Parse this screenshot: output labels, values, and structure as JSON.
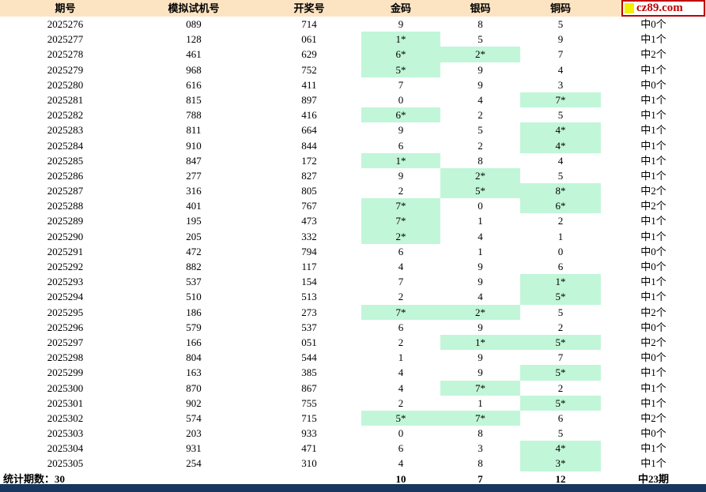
{
  "logo": {
    "text": "cz89.com"
  },
  "colors": {
    "header_bg": "#FCE4C2",
    "highlight": "#C1F6D9",
    "logo_red": "#C00000",
    "logo_yellow": "#F2F000",
    "footer": "#17375E"
  },
  "table": {
    "columns": [
      "期号",
      "模拟试机号",
      "开奖号",
      "金码",
      "银码",
      "铜码"
    ],
    "rows": [
      {
        "period": "2025276",
        "sim": "089",
        "draw": "714",
        "gold": "9",
        "silver": "8",
        "copper": "5",
        "result": "中0个"
      },
      {
        "period": "2025277",
        "sim": "128",
        "draw": "061",
        "gold": "1*",
        "silver": "5",
        "copper": "9",
        "result": "中1个"
      },
      {
        "period": "2025278",
        "sim": "461",
        "draw": "629",
        "gold": "6*",
        "silver": "2*",
        "copper": "7",
        "result": "中2个"
      },
      {
        "period": "2025279",
        "sim": "968",
        "draw": "752",
        "gold": "5*",
        "silver": "9",
        "copper": "4",
        "result": "中1个"
      },
      {
        "period": "2025280",
        "sim": "616",
        "draw": "411",
        "gold": "7",
        "silver": "9",
        "copper": "3",
        "result": "中0个"
      },
      {
        "period": "2025281",
        "sim": "815",
        "draw": "897",
        "gold": "0",
        "silver": "4",
        "copper": "7*",
        "result": "中1个"
      },
      {
        "period": "2025282",
        "sim": "788",
        "draw": "416",
        "gold": "6*",
        "silver": "2",
        "copper": "5",
        "result": "中1个"
      },
      {
        "period": "2025283",
        "sim": "811",
        "draw": "664",
        "gold": "9",
        "silver": "5",
        "copper": "4*",
        "result": "中1个"
      },
      {
        "period": "2025284",
        "sim": "910",
        "draw": "844",
        "gold": "6",
        "silver": "2",
        "copper": "4*",
        "result": "中1个"
      },
      {
        "period": "2025285",
        "sim": "847",
        "draw": "172",
        "gold": "1*",
        "silver": "8",
        "copper": "4",
        "result": "中1个"
      },
      {
        "period": "2025286",
        "sim": "277",
        "draw": "827",
        "gold": "9",
        "silver": "2*",
        "copper": "5",
        "result": "中1个"
      },
      {
        "period": "2025287",
        "sim": "316",
        "draw": "805",
        "gold": "2",
        "silver": "5*",
        "copper": "8*",
        "result": "中2个"
      },
      {
        "period": "2025288",
        "sim": "401",
        "draw": "767",
        "gold": "7*",
        "silver": "0",
        "copper": "6*",
        "result": "中2个"
      },
      {
        "period": "2025289",
        "sim": "195",
        "draw": "473",
        "gold": "7*",
        "silver": "1",
        "copper": "2",
        "result": "中1个"
      },
      {
        "period": "2025290",
        "sim": "205",
        "draw": "332",
        "gold": "2*",
        "silver": "4",
        "copper": "1",
        "result": "中1个"
      },
      {
        "period": "2025291",
        "sim": "472",
        "draw": "794",
        "gold": "6",
        "silver": "1",
        "copper": "0",
        "result": "中0个"
      },
      {
        "period": "2025292",
        "sim": "882",
        "draw": "117",
        "gold": "4",
        "silver": "9",
        "copper": "6",
        "result": "中0个"
      },
      {
        "period": "2025293",
        "sim": "537",
        "draw": "154",
        "gold": "7",
        "silver": "9",
        "copper": "1*",
        "result": "中1个"
      },
      {
        "period": "2025294",
        "sim": "510",
        "draw": "513",
        "gold": "2",
        "silver": "4",
        "copper": "5*",
        "result": "中1个"
      },
      {
        "period": "2025295",
        "sim": "186",
        "draw": "273",
        "gold": "7*",
        "silver": "2*",
        "copper": "5",
        "result": "中2个"
      },
      {
        "period": "2025296",
        "sim": "579",
        "draw": "537",
        "gold": "6",
        "silver": "9",
        "copper": "2",
        "result": "中0个"
      },
      {
        "period": "2025297",
        "sim": "166",
        "draw": "051",
        "gold": "2",
        "silver": "1*",
        "copper": "5*",
        "result": "中2个"
      },
      {
        "period": "2025298",
        "sim": "804",
        "draw": "544",
        "gold": "1",
        "silver": "9",
        "copper": "7",
        "result": "中0个"
      },
      {
        "period": "2025299",
        "sim": "163",
        "draw": "385",
        "gold": "4",
        "silver": "9",
        "copper": "5*",
        "result": "中1个"
      },
      {
        "period": "2025300",
        "sim": "870",
        "draw": "867",
        "gold": "4",
        "silver": "7*",
        "copper": "2",
        "result": "中1个"
      },
      {
        "period": "2025301",
        "sim": "902",
        "draw": "755",
        "gold": "2",
        "silver": "1",
        "copper": "5*",
        "result": "中1个"
      },
      {
        "period": "2025302",
        "sim": "574",
        "draw": "715",
        "gold": "5*",
        "silver": "7*",
        "copper": "6",
        "result": "中2个"
      },
      {
        "period": "2025303",
        "sim": "203",
        "draw": "933",
        "gold": "0",
        "silver": "8",
        "copper": "5",
        "result": "中0个"
      },
      {
        "period": "2025304",
        "sim": "931",
        "draw": "471",
        "gold": "6",
        "silver": "3",
        "copper": "4*",
        "result": "中1个"
      },
      {
        "period": "2025305",
        "sim": "254",
        "draw": "310",
        "gold": "4",
        "silver": "8",
        "copper": "3*",
        "result": "中1个"
      }
    ],
    "summary": {
      "label": "统计期数：30",
      "gold": "10",
      "silver": "7",
      "copper": "12",
      "result": "中23期"
    }
  }
}
